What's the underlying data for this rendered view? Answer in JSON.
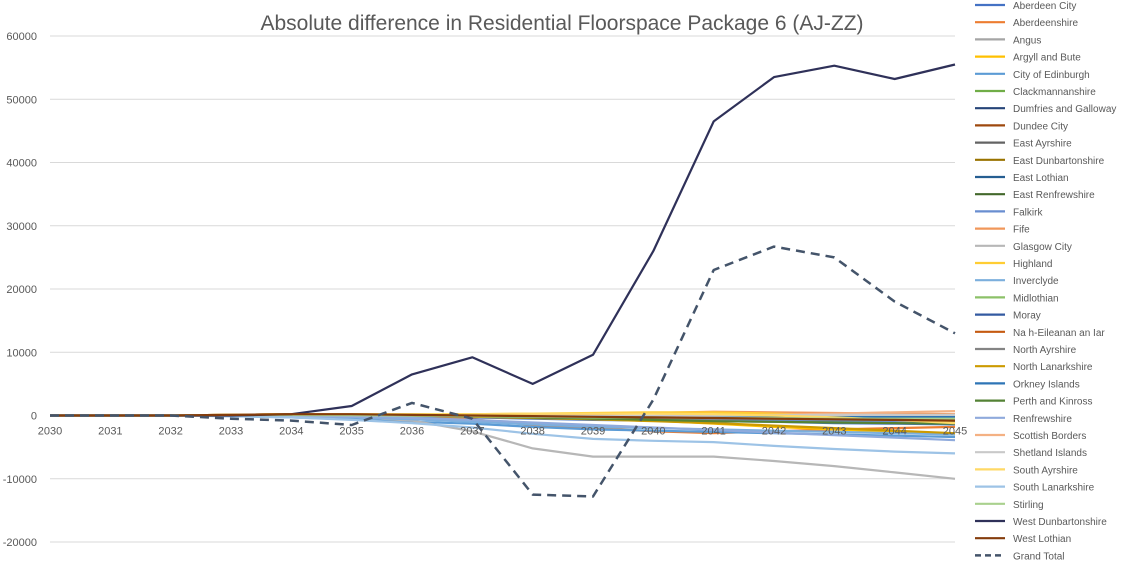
{
  "chart_data": {
    "type": "line",
    "title": "Absolute difference in Residential Floorspace Package 6 (AJ-ZZ)",
    "xlabel": "",
    "ylabel": "",
    "x": [
      "2030",
      "2031",
      "2032",
      "2033",
      "2034",
      "2035",
      "2036",
      "2037",
      "2038",
      "2039",
      "2040",
      "2041",
      "2042",
      "2043",
      "2044",
      "2045"
    ],
    "ylim": [
      -20000,
      60000
    ],
    "yticks": [
      -20000,
      -10000,
      0,
      10000,
      20000,
      30000,
      40000,
      50000,
      60000
    ],
    "ytick_labels": [
      "-20000",
      "-10000",
      "0",
      "10000",
      "20000",
      "30000",
      "40000",
      "50000",
      "60000"
    ],
    "grid": true,
    "legend": "right",
    "series": [
      {
        "name": "Aberdeen City",
        "color": "#4472c4",
        "values": [
          0,
          0,
          0,
          50,
          100,
          0,
          -200,
          -300,
          -500,
          -700,
          -800,
          -900,
          -1000,
          -1200,
          -1300,
          -1400
        ]
      },
      {
        "name": "Aberdeenshire",
        "color": "#ed7d31",
        "values": [
          0,
          0,
          0,
          100,
          200,
          100,
          -200,
          -600,
          -1500,
          -2000,
          -2500,
          -2800,
          -2500,
          -2200,
          -2000,
          -1800
        ]
      },
      {
        "name": "Angus",
        "color": "#a5a5a5",
        "values": [
          0,
          0,
          0,
          50,
          100,
          0,
          -100,
          -200,
          -300,
          -400,
          -500,
          -500,
          -500,
          -500,
          -500,
          -500
        ]
      },
      {
        "name": "Argyll and Bute",
        "color": "#ffc000",
        "values": [
          0,
          0,
          0,
          50,
          100,
          100,
          0,
          -100,
          -200,
          -400,
          -800,
          -1300,
          -1800,
          -2200,
          -2600,
          -3000
        ]
      },
      {
        "name": "City of Edinburgh",
        "color": "#5b9bd5",
        "values": [
          0,
          0,
          0,
          -100,
          -300,
          -600,
          -1000,
          -1300,
          -1800,
          -2200,
          -2400,
          -2600,
          -2800,
          -3000,
          -3200,
          -3400
        ]
      },
      {
        "name": "Clackmannanshire",
        "color": "#70ad47",
        "values": [
          0,
          0,
          0,
          50,
          50,
          0,
          -50,
          -100,
          -150,
          -200,
          -250,
          -300,
          -300,
          -300,
          -300,
          -300
        ]
      },
      {
        "name": "Dumfries and Galloway",
        "color": "#264478",
        "values": [
          0,
          0,
          0,
          100,
          200,
          200,
          100,
          0,
          -200,
          -300,
          -400,
          -400,
          -500,
          -500,
          -600,
          -700
        ]
      },
      {
        "name": "Dundee City",
        "color": "#9e480e",
        "values": [
          0,
          0,
          0,
          50,
          100,
          50,
          0,
          -100,
          -200,
          -200,
          -300,
          -300,
          -300,
          -400,
          -400,
          -400
        ]
      },
      {
        "name": "East Ayrshire",
        "color": "#636363",
        "values": [
          0,
          0,
          0,
          50,
          100,
          50,
          0,
          -100,
          -200,
          -300,
          -300,
          -400,
          -400,
          -500,
          -500,
          -600
        ]
      },
      {
        "name": "East Dunbartonshire",
        "color": "#997300",
        "values": [
          0,
          0,
          0,
          50,
          100,
          50,
          0,
          -100,
          -200,
          -300,
          -400,
          -500,
          -600,
          -700,
          -800,
          -900
        ]
      },
      {
        "name": "East Lothian",
        "color": "#255e91",
        "values": [
          0,
          0,
          0,
          50,
          100,
          50,
          0,
          -100,
          -200,
          -300,
          -400,
          -400,
          -500,
          -500,
          -600,
          -600
        ]
      },
      {
        "name": "East Renfrewshire",
        "color": "#43682b",
        "values": [
          0,
          0,
          0,
          50,
          100,
          50,
          0,
          -100,
          -200,
          -200,
          -300,
          -300,
          -400,
          -400,
          -500,
          -500
        ]
      },
      {
        "name": "Falkirk",
        "color": "#698ed0",
        "values": [
          0,
          0,
          0,
          50,
          100,
          0,
          -100,
          -200,
          -300,
          -400,
          -500,
          -600,
          -700,
          -800,
          -900,
          -1000
        ]
      },
      {
        "name": "Fife",
        "color": "#f1975a",
        "values": [
          0,
          0,
          0,
          100,
          200,
          200,
          100,
          0,
          100,
          200,
          400,
          600,
          500,
          400,
          300,
          200
        ]
      },
      {
        "name": "Glasgow City",
        "color": "#b7b7b7",
        "values": [
          0,
          0,
          0,
          50,
          100,
          -200,
          -800,
          -2500,
          -5200,
          -6500,
          -6500,
          -6500,
          -7200,
          -8000,
          -9000,
          -10000
        ]
      },
      {
        "name": "Highland",
        "color": "#ffcd33",
        "values": [
          0,
          0,
          0,
          100,
          200,
          200,
          200,
          200,
          300,
          400,
          500,
          500,
          300,
          0,
          -500,
          -1200
        ]
      },
      {
        "name": "Inverclyde",
        "color": "#7cafdd",
        "values": [
          0,
          0,
          0,
          0,
          -100,
          -300,
          -600,
          -1000,
          -1400,
          -1800,
          -2000,
          -2200,
          -2400,
          -2600,
          -2800,
          -3000
        ]
      },
      {
        "name": "Midlothian",
        "color": "#8cc168",
        "values": [
          0,
          0,
          0,
          50,
          100,
          100,
          50,
          0,
          -100,
          -200,
          -300,
          -400,
          -500,
          -600,
          -700,
          -800
        ]
      },
      {
        "name": "Moray",
        "color": "#335aa1",
        "values": [
          0,
          0,
          0,
          50,
          100,
          50,
          0,
          -100,
          -200,
          -300,
          -300,
          -400,
          -400,
          -500,
          -500,
          -600
        ]
      },
      {
        "name": "Na h-Eileanan an Iar",
        "color": "#c55a11",
        "values": [
          0,
          0,
          0,
          50,
          50,
          0,
          0,
          -50,
          -100,
          -100,
          -150,
          -150,
          -200,
          -200,
          -200,
          -200
        ]
      },
      {
        "name": "North Ayrshire",
        "color": "#848484",
        "values": [
          0,
          0,
          0,
          50,
          100,
          50,
          0,
          -100,
          -200,
          -300,
          -400,
          -500,
          -500,
          -600,
          -600,
          -700
        ]
      },
      {
        "name": "North Lanarkshire",
        "color": "#cc9a00",
        "values": [
          0,
          0,
          0,
          100,
          200,
          100,
          0,
          -200,
          -400,
          -600,
          -900,
          -1200,
          -1600,
          -2000,
          -2400,
          -2800
        ]
      },
      {
        "name": "Orkney Islands",
        "color": "#2e75b6",
        "values": [
          0,
          0,
          0,
          50,
          50,
          0,
          0,
          -50,
          -100,
          -100,
          -150,
          -150,
          -200,
          -200,
          -200,
          -200
        ]
      },
      {
        "name": "Perth and Kinross",
        "color": "#548235",
        "values": [
          0,
          0,
          0,
          50,
          100,
          100,
          0,
          -100,
          -300,
          -500,
          -700,
          -900,
          -1000,
          -1100,
          -1200,
          -1300
        ]
      },
      {
        "name": "Renfrewshire",
        "color": "#8faadc",
        "values": [
          0,
          0,
          0,
          0,
          -100,
          -200,
          -400,
          -700,
          -1100,
          -1500,
          -1900,
          -2300,
          -2700,
          -3100,
          -3500,
          -3900
        ]
      },
      {
        "name": "Scottish Borders",
        "color": "#f4b183",
        "values": [
          0,
          0,
          0,
          50,
          100,
          100,
          50,
          0,
          -100,
          -100,
          -100,
          0,
          100,
          300,
          500,
          700
        ]
      },
      {
        "name": "Shetland Islands",
        "color": "#c9c9c9",
        "values": [
          0,
          0,
          0,
          50,
          50,
          50,
          0,
          0,
          -50,
          -50,
          -50,
          0,
          50,
          100,
          100,
          100
        ]
      },
      {
        "name": "South Ayrshire",
        "color": "#ffd966",
        "values": [
          0,
          0,
          0,
          100,
          200,
          200,
          200,
          200,
          300,
          300,
          300,
          200,
          0,
          -300,
          -700,
          -1200
        ]
      },
      {
        "name": "South Lanarkshire",
        "color": "#9dc3e6",
        "values": [
          0,
          0,
          0,
          -100,
          -300,
          -700,
          -1200,
          -1900,
          -2900,
          -3700,
          -4000,
          -4200,
          -4800,
          -5300,
          -5700,
          -6000
        ]
      },
      {
        "name": "Stirling",
        "color": "#a9d18e",
        "values": [
          0,
          0,
          0,
          50,
          100,
          50,
          0,
          -100,
          -200,
          -300,
          -300,
          -400,
          -400,
          -500,
          -500,
          -500
        ]
      },
      {
        "name": "West Dunbartonshire",
        "color": "#2f3159",
        "values": [
          0,
          0,
          0,
          0,
          200,
          1500,
          6500,
          9200,
          5000,
          9600,
          26000,
          46500,
          53500,
          55300,
          53200,
          55500
        ]
      },
      {
        "name": "West Lothian",
        "color": "#843c0c",
        "values": [
          0,
          0,
          0,
          100,
          200,
          200,
          100,
          0,
          -100,
          -200,
          -300,
          -400,
          -500,
          -600,
          -700,
          -800
        ]
      },
      {
        "name": "Grand Total",
        "color": "#44546a",
        "dashed": true,
        "values": [
          0,
          0,
          0,
          -500,
          -800,
          -1500,
          2000,
          -500,
          -12500,
          -12800,
          2500,
          23000,
          26700,
          25000,
          18000,
          13000
        ]
      }
    ]
  }
}
